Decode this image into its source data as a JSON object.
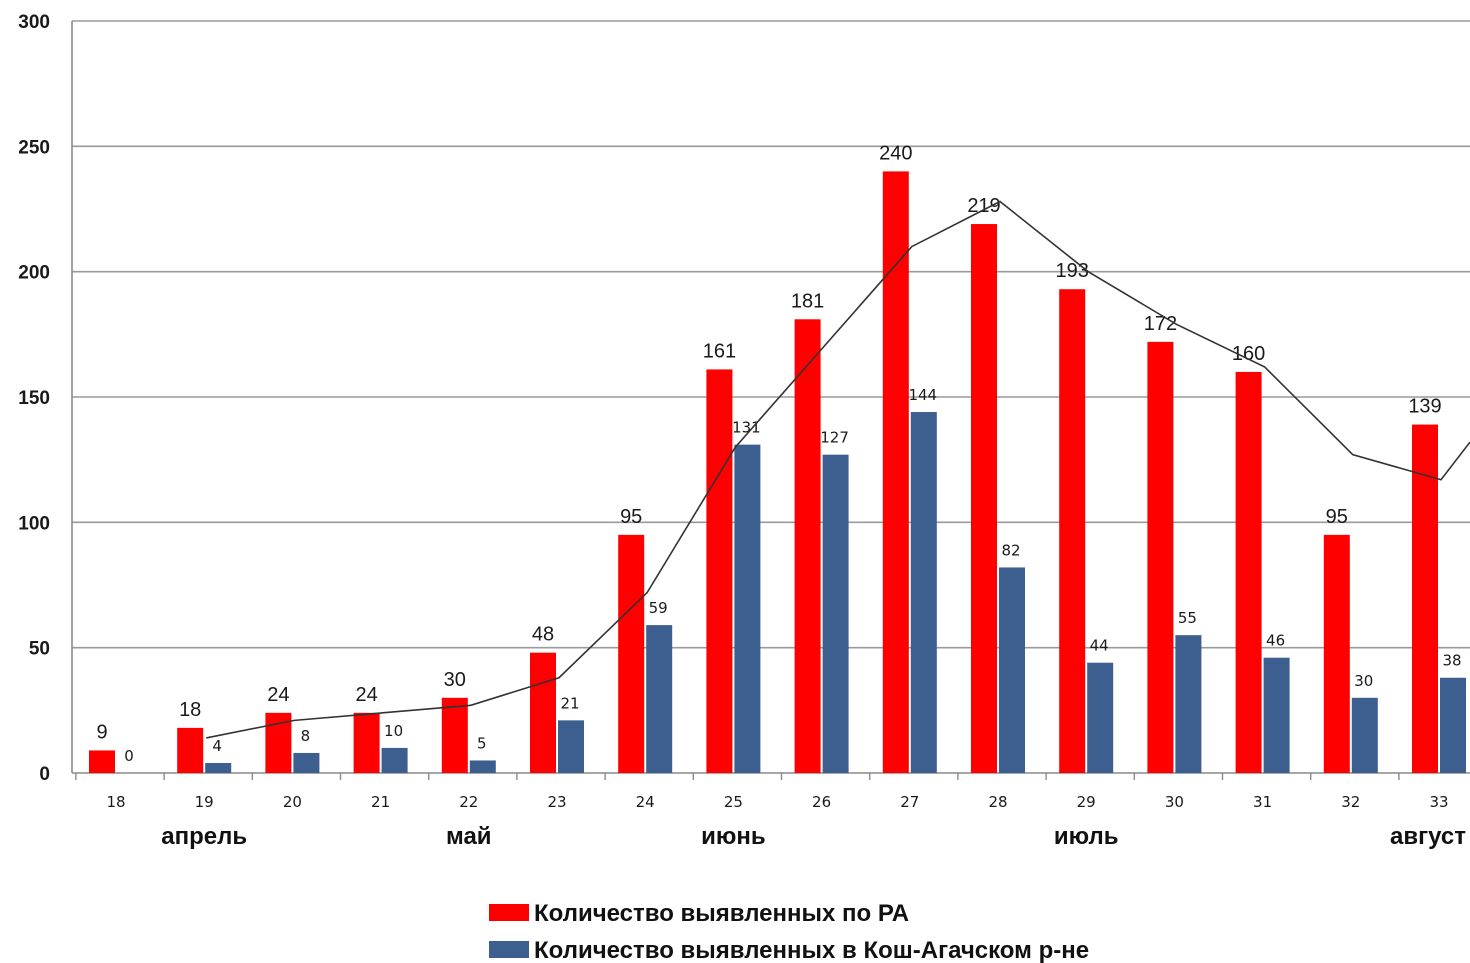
{
  "chart_data": {
    "type": "bar",
    "categories": [
      "18",
      "19",
      "20",
      "21",
      "22",
      "23",
      "24",
      "25",
      "26",
      "27",
      "28",
      "29",
      "30",
      "31",
      "32",
      "33"
    ],
    "series": [
      {
        "name": "Количество выявленных по РА",
        "color": "#ff0000",
        "values": [
          9,
          18,
          24,
          24,
          30,
          48,
          95,
          161,
          181,
          240,
          219,
          193,
          172,
          160,
          95,
          139
        ]
      },
      {
        "name": "Количество выявленных в Кош-Агачском р-не",
        "color": "#3c5f8f",
        "values": [
          0,
          4,
          8,
          10,
          5,
          21,
          59,
          131,
          127,
          144,
          82,
          44,
          55,
          46,
          30,
          38
        ]
      }
    ],
    "trend_line": {
      "type": "line",
      "color": "#333333",
      "x": [
        "19",
        "20",
        "21",
        "22",
        "23",
        "24",
        "25",
        "26",
        "27",
        "28",
        "29",
        "30",
        "31",
        "32",
        "33"
      ],
      "values": [
        14,
        21,
        24,
        27,
        38,
        72,
        130,
        170,
        210,
        228,
        200,
        179,
        162,
        127,
        117
      ]
    },
    "month_labels": [
      {
        "text": "апрель",
        "category": "19"
      },
      {
        "text": "май",
        "category": "22"
      },
      {
        "text": "июнь",
        "category": "25"
      },
      {
        "text": "июль",
        "category": "29"
      },
      {
        "text": "август",
        "category": "33"
      }
    ],
    "ylim": [
      0,
      300
    ],
    "yticks": [
      0,
      50,
      100,
      150,
      200,
      250,
      300
    ],
    "grid": true,
    "legend_position": "bottom-center",
    "title": "",
    "xlabel": "",
    "ylabel": ""
  }
}
